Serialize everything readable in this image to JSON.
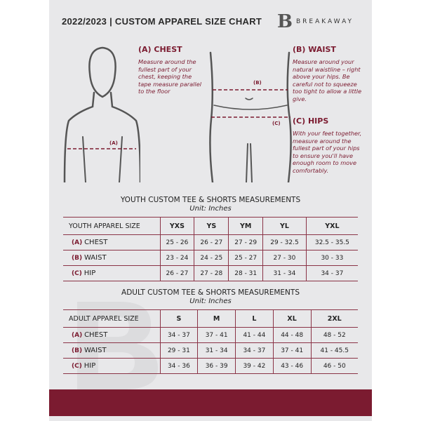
{
  "header": {
    "title": "2022/2023  |  CUSTOM APPAREL SIZE CHART",
    "logo_mark": "B",
    "logo_text": "BREAKAWAY"
  },
  "chest": {
    "title": "(A) CHEST",
    "desc": "Measure around the fullest part of your chest, keeping the tape measure parallel to the floor",
    "label": "(A)"
  },
  "waist": {
    "title": "(B) WAIST",
    "desc": "Measure around your natural waistline – right above your hips. Be careful not to squeeze too tight to allow a little give.",
    "label": "(B)"
  },
  "hips": {
    "title": "(C) HIPS",
    "desc": "With your feet together, measure around the fullest part of your hips to ensure you'll have enough room to move comfortably.",
    "label": "(C)"
  },
  "youth": {
    "title": "YOUTH CUSTOM TEE & SHORTS MEASUREMENTS",
    "unit": "Unit: Inches",
    "header": "YOUTH APPAREL SIZE",
    "sizes": [
      "YXS",
      "YS",
      "YM",
      "YL",
      "YXL"
    ],
    "rows": [
      {
        "letter": "(A)",
        "name": "CHEST",
        "values": [
          "25 - 26",
          "26 - 27",
          "27 - 29",
          "29 - 32.5",
          "32.5 - 35.5"
        ]
      },
      {
        "letter": "(B)",
        "name": "WAIST",
        "values": [
          "23 - 24",
          "24 - 25",
          "25 - 27",
          "27 - 30",
          "30 - 33"
        ]
      },
      {
        "letter": "(C)",
        "name": "HIP",
        "values": [
          "26 - 27",
          "27 - 28",
          "28 - 31",
          "31 - 34",
          "34 - 37"
        ]
      }
    ]
  },
  "adult": {
    "title": "ADULT CUSTOM TEE & SHORTS MEASUREMENTS",
    "unit": "Unit: Inches",
    "header": "ADULT APPAREL SIZE",
    "sizes": [
      "S",
      "M",
      "L",
      "XL",
      "2XL"
    ],
    "rows": [
      {
        "letter": "(A)",
        "name": "CHEST",
        "values": [
          "34 - 37",
          "37 - 41",
          "41 - 44",
          "44 - 48",
          "48 - 52"
        ]
      },
      {
        "letter": "(B)",
        "name": "WAIST",
        "values": [
          "29 - 31",
          "31 - 34",
          "34 - 37",
          "37 - 41",
          "41 - 45.5"
        ]
      },
      {
        "letter": "(C)",
        "name": "HIP",
        "values": [
          "34 - 36",
          "36 - 39",
          "39 - 42",
          "43 - 46",
          "46 - 50"
        ]
      }
    ]
  },
  "colors": {
    "accent": "#7b1b30",
    "background": "#e8e8ea"
  }
}
